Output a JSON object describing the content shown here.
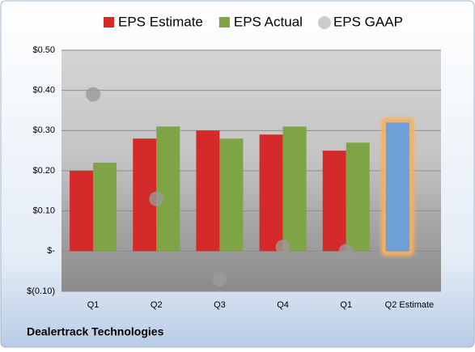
{
  "chart_data": {
    "type": "bar",
    "categories": [
      "Q1",
      "Q2",
      "Q3",
      "Q4",
      "Q1",
      "Q2 Estimate"
    ],
    "series": [
      {
        "name": "EPS Estimate",
        "color": "#d42a2a",
        "values": [
          0.2,
          0.28,
          0.3,
          0.29,
          0.25,
          0.32
        ],
        "highlight": {
          "index": 5,
          "color": "#6e9fd6",
          "glow": "#f5b060"
        }
      },
      {
        "name": "EPS Actual",
        "color": "#7ea446",
        "values": [
          0.22,
          0.31,
          0.28,
          0.31,
          0.27,
          null
        ]
      },
      {
        "name": "EPS GAAP",
        "color": "#9a9a9a",
        "marker": "circle",
        "values": [
          0.39,
          0.13,
          -0.07,
          0.01,
          0.0,
          null
        ]
      }
    ],
    "ylim": [
      -0.1,
      0.5
    ],
    "yticks": [
      {
        "value": -0.1,
        "label": "$(0.10)"
      },
      {
        "value": 0,
        "label": "$-"
      },
      {
        "value": 0.1,
        "label": "$0.10"
      },
      {
        "value": 0.2,
        "label": "$0.20"
      },
      {
        "value": 0.3,
        "label": "$0.30"
      },
      {
        "value": 0.4,
        "label": "$0.40"
      },
      {
        "value": 0.5,
        "label": "$0.50"
      }
    ],
    "grid": true,
    "legend": "top",
    "footer": "Dealertrack Technologies"
  }
}
